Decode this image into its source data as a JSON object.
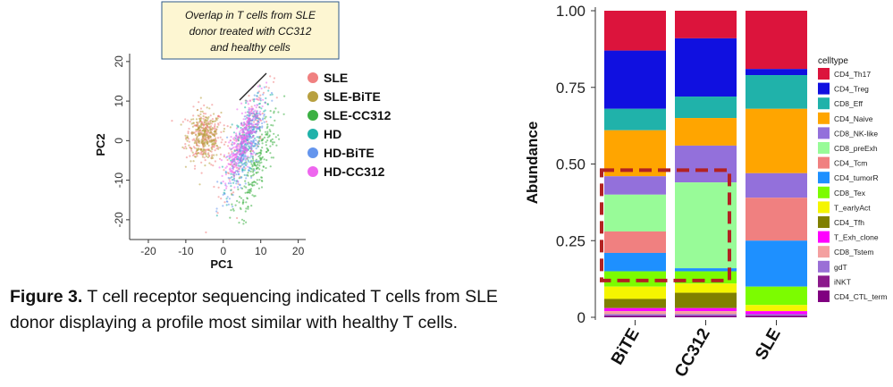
{
  "caption": {
    "label": "Figure 3.",
    "text": "T cell receptor sequencing indicated T cells from SLE donor displaying a profile most similar with healthy T cells."
  },
  "chart_data": [
    {
      "type": "scatter",
      "title": "",
      "xlabel": "PC1",
      "ylabel": "PC2",
      "xlim": [
        -25,
        22
      ],
      "ylim": [
        -25,
        22
      ],
      "xticks": [
        -20,
        -10,
        0,
        10,
        20
      ],
      "yticks": [
        -20,
        -10,
        0,
        10,
        20
      ],
      "legend_position": "right",
      "series": [
        {
          "name": "SLE",
          "color": "#f08080",
          "clusters": [
            {
              "cx": -5,
              "cy": 1,
              "sx": 2.5,
              "sy": 3.5,
              "n": 230,
              "rot": 0
            },
            {
              "cx": 6,
              "cy": 0,
              "sx": 2.0,
              "sy": 7.5,
              "n": 110,
              "rot": 20
            }
          ]
        },
        {
          "name": "SLE-BiTE",
          "color": "#b8a040",
          "clusters": [
            {
              "cx": -5,
              "cy": 1,
              "sx": 2.2,
              "sy": 3.0,
              "n": 260,
              "rot": 0
            }
          ]
        },
        {
          "name": "SLE-CC312",
          "color": "#3cb043",
          "clusters": [
            {
              "cx": 9,
              "cy": -6,
              "sx": 1.5,
              "sy": 8.0,
              "n": 210,
              "rot": 20
            }
          ]
        },
        {
          "name": "HD",
          "color": "#20b2aa",
          "clusters": [
            {
              "cx": 6,
              "cy": 0,
              "sx": 1.6,
              "sy": 6.5,
              "n": 200,
              "rot": 20
            }
          ]
        },
        {
          "name": "HD-BiTE",
          "color": "#6495ed",
          "clusters": [
            {
              "cx": 6,
              "cy": -2,
              "sx": 1.5,
              "sy": 6.0,
              "n": 280,
              "rot": 20
            }
          ]
        },
        {
          "name": "HD-CC312",
          "color": "#ee66ee",
          "clusters": [
            {
              "cx": 5,
              "cy": 0,
              "sx": 1.3,
              "sy": 5.5,
              "n": 300,
              "rot": 20
            }
          ]
        }
      ],
      "annotation": {
        "text_lines": [
          "Overlap in T cells from SLE",
          "donor treated with CC312",
          "and healthy cells"
        ],
        "background": "#fdf6d2",
        "border": "#2e5a88",
        "pointer_target": [
          2,
          9
        ]
      }
    },
    {
      "type": "bar",
      "stacked": true,
      "title": "",
      "xlabel": "",
      "ylabel": "Abundance",
      "categories": [
        "BiTE",
        "CC312",
        "SLE"
      ],
      "ylim": [
        0,
        1
      ],
      "yticks": [
        {
          "value": 1.0,
          "label": "1.00"
        },
        {
          "value": 0.75,
          "label": "0.75"
        },
        {
          "value": 0.5,
          "label": "0.50"
        },
        {
          "value": 0.25,
          "label": "0.25"
        },
        {
          "value": 0,
          "label": "0"
        }
      ],
      "grid": false,
      "legend_title": "celltype",
      "legend_position": "right",
      "series": [
        {
          "name": "CD4_Th17",
          "color": "#dc143c",
          "values": [
            0.13,
            0.09,
            0.19
          ]
        },
        {
          "name": "CD4_Treg",
          "color": "#1010e0",
          "values": [
            0.19,
            0.19,
            0.02
          ]
        },
        {
          "name": "CD8_Eff",
          "color": "#20b2aa",
          "values": [
            0.07,
            0.07,
            0.11
          ]
        },
        {
          "name": "CD4_Naive",
          "color": "#ffa500",
          "values": [
            0.15,
            0.09,
            0.21
          ]
        },
        {
          "name": "CD8_NK-like",
          "color": "#9370db",
          "values": [
            0.06,
            0.12,
            0.08
          ]
        },
        {
          "name": "CD8_preExh",
          "color": "#98fb98",
          "values": [
            0.12,
            0.28,
            0.0
          ]
        },
        {
          "name": "CD4_Tcm",
          "color": "#f08080",
          "values": [
            0.07,
            0.0,
            0.14
          ]
        },
        {
          "name": "CD4_tumorR",
          "color": "#1e90ff",
          "values": [
            0.06,
            0.01,
            0.15
          ]
        },
        {
          "name": "CD8_Tex",
          "color": "#7cfc00",
          "values": [
            0.05,
            0.04,
            0.06
          ]
        },
        {
          "name": "T_earlyAct",
          "color": "#f5f500",
          "values": [
            0.04,
            0.03,
            0.02
          ]
        },
        {
          "name": "CD4_Tfh",
          "color": "#808000",
          "values": [
            0.03,
            0.05,
            0.0
          ]
        },
        {
          "name": "T_Exh_clone",
          "color": "#ff00ff",
          "values": [
            0.01,
            0.01,
            0.01
          ]
        },
        {
          "name": "CD8_Tstem",
          "color": "#f4a0a0",
          "values": [
            0.01,
            0.01,
            0.0
          ]
        },
        {
          "name": "gdT",
          "color": "#9a6fd6",
          "values": [
            0.005,
            0.005,
            0.005
          ]
        },
        {
          "name": "iNKT",
          "color": "#8b1a8b",
          "values": [
            0.0,
            0.0,
            0.0
          ]
        },
        {
          "name": "CD4_CTL_term",
          "color": "#800080",
          "values": [
            0.005,
            0.005,
            0.005
          ]
        }
      ],
      "highlight_box": {
        "color": "#b22222",
        "style": "dashed",
        "categories": [
          "BiTE",
          "CC312"
        ],
        "y_range": [
          0.12,
          0.48
        ]
      }
    }
  ]
}
